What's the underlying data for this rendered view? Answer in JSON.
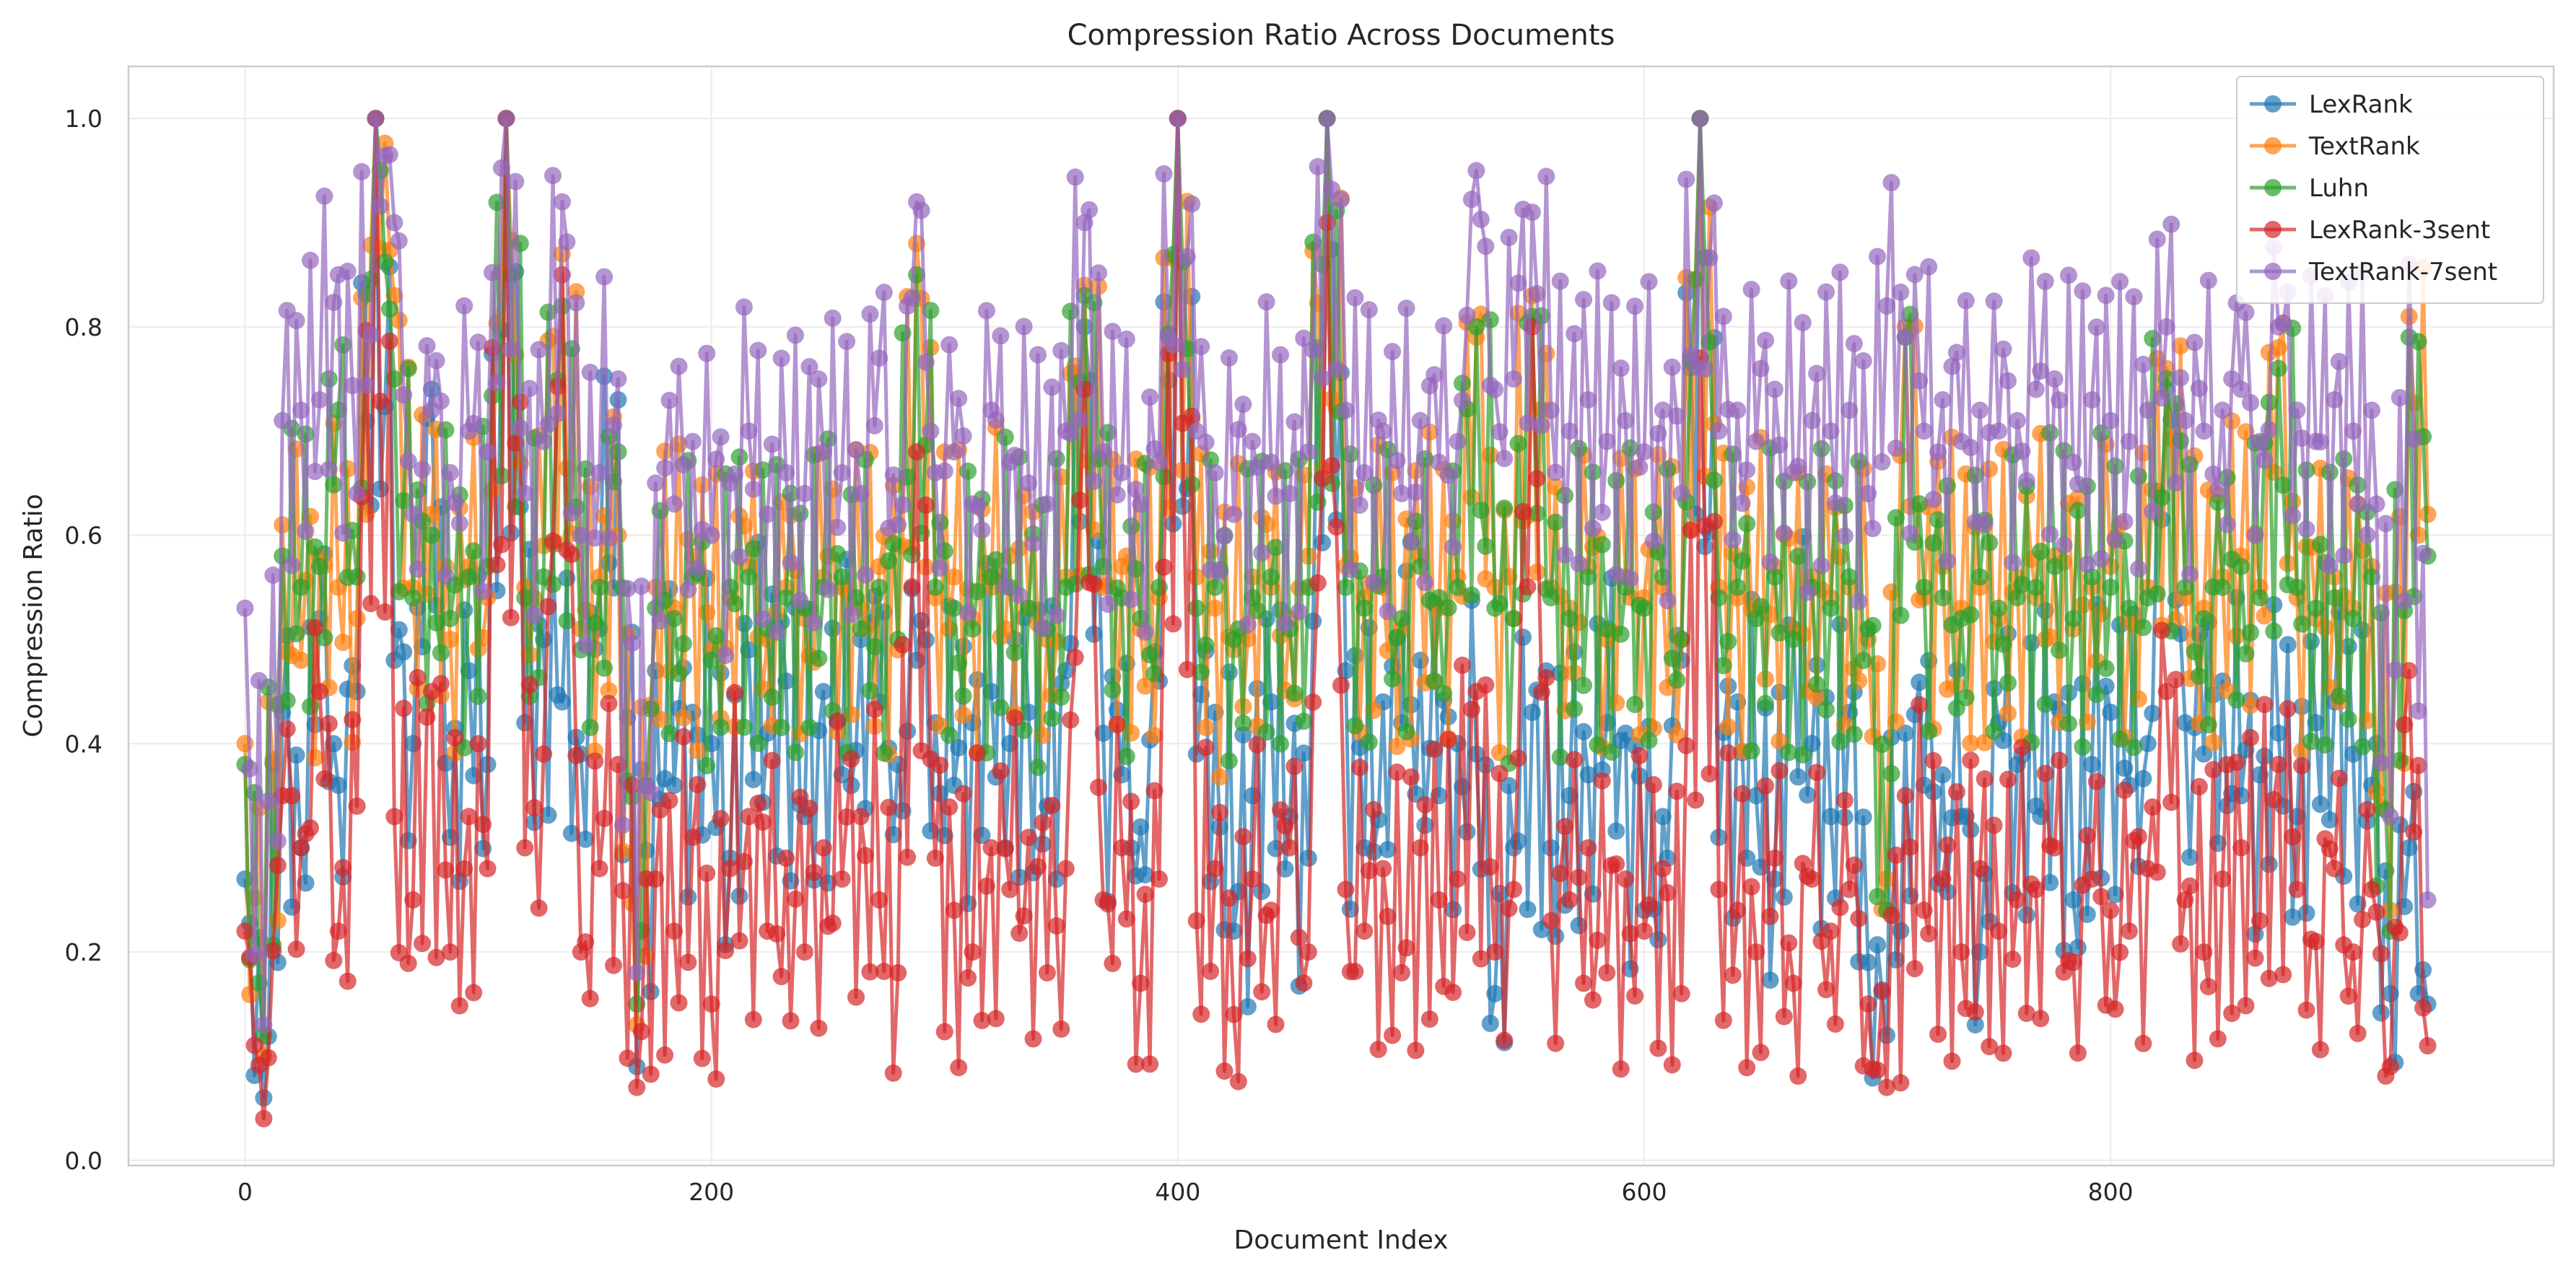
{
  "chart_data": {
    "type": "line",
    "title": "Compression Ratio Across Documents",
    "xlabel": "Document Index",
    "ylabel": "Compression Ratio",
    "xlim": [
      -50,
      990
    ],
    "ylim": [
      -0.005,
      1.05
    ],
    "xticks": [
      0,
      200,
      400,
      600,
      800
    ],
    "yticks": [
      0.0,
      0.2,
      0.4,
      0.6,
      0.8,
      1.0
    ],
    "xtick_labels": [
      "0",
      "200",
      "400",
      "600",
      "800"
    ],
    "ytick_labels": [
      "0.0",
      "0.2",
      "0.4",
      "0.6",
      "0.8",
      "1.0"
    ],
    "grid": true,
    "legend_position": "top-right",
    "markers": "circle",
    "series_encoding": "y values listed in order for document index 0, 8, 16, ... (every 8th document); dense oscillation between listed points is summarized by range_low/range_high",
    "x_step": 8,
    "series": [
      {
        "name": "LexRank",
        "color": "#1f77b4",
        "range_low": 0.06,
        "range_high": 1.0,
        "values": [
          0.27,
          0.06,
          0.43,
          0.3,
          0.52,
          0.36,
          0.45,
          1.0,
          0.48,
          0.4,
          0.74,
          0.31,
          0.47,
          0.38,
          1.0,
          0.42,
          0.5,
          0.44,
          0.39,
          0.51,
          0.73,
          0.09,
          0.47,
          0.36,
          0.43,
          0.4,
          0.29,
          0.49,
          0.41,
          0.46,
          0.33,
          0.45,
          0.37,
          0.5,
          0.44,
          0.38,
          0.48,
          0.42,
          0.36,
          0.42,
          0.45,
          0.4,
          0.43,
          0.34,
          0.47,
          0.8,
          0.41,
          0.37,
          0.32,
          0.46,
          1.0,
          0.39,
          0.43,
          0.22,
          0.35,
          0.44,
          0.33,
          0.29,
          1.0,
          0.47,
          0.3,
          0.44,
          0.42,
          0.48,
          0.35,
          0.4,
          0.39,
          0.16,
          0.3,
          0.43,
          0.3,
          0.35,
          0.37,
          0.42,
          0.41,
          0.24,
          0.33,
          0.48,
          1.0,
          0.31,
          0.44,
          0.35,
          0.27,
          0.51,
          0.4,
          0.33,
          0.43,
          0.19,
          0.12,
          0.41,
          0.36,
          0.37,
          0.33,
          0.2,
          0.42,
          0.38,
          0.34,
          0.44,
          0.25,
          0.38,
          0.43,
          0.36,
          0.4,
          0.74,
          0.42,
          0.39,
          0.46,
          0.35,
          0.37,
          0.41,
          0.33,
          0.42,
          0.44,
          0.39,
          0.36,
          0.16,
          0.3,
          0.15
        ]
      },
      {
        "name": "TextRank",
        "color": "#ff7f0e",
        "range_low": 0.1,
        "range_high": 1.0,
        "values": [
          0.4,
          0.1,
          0.61,
          0.48,
          0.58,
          0.55,
          0.52,
          1.0,
          0.83,
          0.55,
          0.62,
          0.5,
          0.57,
          0.54,
          1.0,
          0.55,
          0.59,
          0.87,
          0.51,
          0.56,
          0.6,
          0.13,
          0.55,
          0.53,
          0.58,
          0.49,
          0.54,
          0.57,
          0.5,
          0.55,
          0.52,
          0.56,
          0.55,
          0.53,
          0.57,
          0.49,
          0.88,
          0.54,
          0.56,
          0.52,
          0.55,
          0.58,
          0.53,
          0.5,
          0.56,
          0.84,
          0.55,
          0.57,
          0.51,
          0.54,
          1.0,
          0.56,
          0.53,
          0.49,
          0.56,
          0.55,
          0.52,
          0.58,
          1.0,
          0.57,
          0.54,
          0.55,
          0.51,
          0.58,
          0.53,
          0.56,
          0.79,
          0.55,
          0.52,
          0.83,
          0.55,
          0.53,
          0.57,
          0.5,
          0.56,
          0.54,
          0.55,
          0.5,
          1.0,
          0.55,
          0.54,
          0.53,
          0.57,
          0.51,
          0.56,
          0.54,
          0.55,
          0.5,
          0.27,
          0.8,
          0.54,
          0.57,
          0.53,
          0.55,
          0.52,
          0.56,
          0.54,
          0.58,
          0.51,
          0.55,
          0.57,
          0.52,
          0.55,
          0.76,
          0.54,
          0.53,
          0.56,
          0.58,
          0.55,
          0.78,
          0.54,
          0.52,
          0.56,
          0.53,
          0.57,
          0.24,
          0.81,
          0.62
        ]
      },
      {
        "name": "Luhn",
        "color": "#2ca02c",
        "range_low": 0.12,
        "range_high": 1.0,
        "values": [
          0.38,
          0.12,
          0.58,
          0.55,
          0.57,
          0.72,
          0.56,
          1.0,
          0.75,
          0.54,
          0.6,
          0.52,
          0.56,
          0.57,
          1.0,
          0.54,
          0.56,
          0.82,
          0.49,
          0.55,
          0.68,
          0.15,
          0.53,
          0.52,
          0.56,
          0.48,
          0.55,
          0.56,
          0.51,
          0.54,
          0.53,
          0.55,
          0.56,
          0.51,
          0.55,
          0.5,
          0.85,
          0.55,
          0.53,
          0.51,
          0.56,
          0.55,
          0.53,
          0.51,
          0.55,
          0.83,
          0.57,
          0.54,
          0.52,
          0.55,
          1.0,
          0.53,
          0.55,
          0.5,
          0.54,
          0.56,
          0.51,
          0.55,
          1.0,
          0.55,
          0.53,
          0.56,
          0.52,
          0.57,
          0.54,
          0.55,
          0.8,
          0.53,
          0.52,
          0.81,
          0.54,
          0.52,
          0.56,
          0.51,
          0.55,
          0.53,
          0.56,
          0.5,
          1.0,
          0.54,
          0.55,
          0.52,
          0.56,
          0.5,
          0.55,
          0.53,
          0.56,
          0.51,
          0.24,
          0.79,
          0.55,
          0.54,
          0.52,
          0.56,
          0.53,
          0.54,
          0.55,
          0.57,
          0.52,
          0.56,
          0.55,
          0.53,
          0.54,
          0.75,
          0.55,
          0.52,
          0.55,
          0.57,
          0.54,
          0.76,
          0.55,
          0.53,
          0.54,
          0.52,
          0.56,
          0.22,
          0.79,
          0.58
        ]
      },
      {
        "name": "LexRank-3sent",
        "color": "#d62728",
        "range_low": 0.04,
        "range_high": 1.0,
        "values": [
          0.22,
          0.04,
          0.35,
          0.3,
          0.45,
          0.22,
          0.34,
          1.0,
          0.33,
          0.25,
          0.45,
          0.2,
          0.33,
          0.28,
          1.0,
          0.3,
          0.39,
          0.85,
          0.2,
          0.28,
          0.38,
          0.07,
          0.27,
          0.22,
          0.31,
          0.15,
          0.28,
          0.33,
          0.22,
          0.29,
          0.2,
          0.3,
          0.27,
          0.33,
          0.25,
          0.18,
          0.68,
          0.29,
          0.24,
          0.2,
          0.3,
          0.26,
          0.31,
          0.18,
          0.28,
          0.74,
          0.25,
          0.3,
          0.17,
          0.27,
          1.0,
          0.23,
          0.28,
          0.14,
          0.27,
          0.24,
          0.3,
          0.2,
          0.9,
          0.26,
          0.22,
          0.28,
          0.18,
          0.3,
          0.25,
          0.27,
          0.45,
          0.2,
          0.26,
          0.8,
          0.23,
          0.25,
          0.3,
          0.18,
          0.27,
          0.22,
          0.28,
          0.16,
          0.77,
          0.26,
          0.24,
          0.2,
          0.29,
          0.17,
          0.27,
          0.22,
          0.26,
          0.15,
          0.07,
          0.35,
          0.24,
          0.27,
          0.2,
          0.28,
          0.22,
          0.25,
          0.26,
          0.3,
          0.19,
          0.27,
          0.24,
          0.22,
          0.28,
          0.45,
          0.25,
          0.2,
          0.27,
          0.3,
          0.23,
          0.38,
          0.26,
          0.21,
          0.28,
          0.2,
          0.26,
          0.09,
          0.47,
          0.11
        ]
      },
      {
        "name": "TextRank-7sent",
        "color": "#9467bd",
        "range_low": 0.12,
        "range_high": 1.0,
        "values": [
          0.53,
          0.13,
          0.71,
          0.72,
          0.73,
          0.85,
          0.64,
          1.0,
          0.9,
          0.62,
          0.72,
          0.66,
          0.7,
          0.68,
          1.0,
          0.64,
          0.69,
          0.92,
          0.6,
          0.66,
          0.75,
          0.18,
          0.65,
          0.63,
          0.69,
          0.6,
          0.65,
          0.7,
          0.62,
          0.66,
          0.64,
          0.68,
          0.66,
          0.64,
          0.77,
          0.61,
          0.92,
          0.66,
          0.68,
          0.63,
          0.72,
          0.67,
          0.65,
          0.63,
          0.7,
          0.9,
          0.68,
          0.66,
          0.63,
          0.67,
          1.0,
          0.7,
          0.66,
          0.62,
          0.69,
          0.67,
          0.64,
          0.68,
          1.0,
          0.72,
          0.66,
          0.7,
          0.64,
          0.71,
          0.67,
          0.69,
          0.95,
          0.74,
          0.75,
          0.91,
          0.72,
          0.7,
          0.73,
          0.69,
          0.71,
          0.68,
          0.72,
          0.64,
          1.0,
          0.7,
          0.72,
          0.69,
          0.74,
          0.66,
          0.71,
          0.7,
          0.72,
          0.64,
          0.82,
          0.79,
          0.7,
          0.73,
          0.69,
          0.72,
          0.7,
          0.71,
          0.74,
          0.75,
          0.67,
          0.73,
          0.71,
          0.69,
          0.72,
          0.8,
          0.71,
          0.7,
          0.72,
          0.74,
          0.69,
          0.8,
          0.72,
          0.69,
          0.73,
          0.7,
          0.72,
          0.33,
          0.86,
          0.25
        ]
      }
    ]
  }
}
